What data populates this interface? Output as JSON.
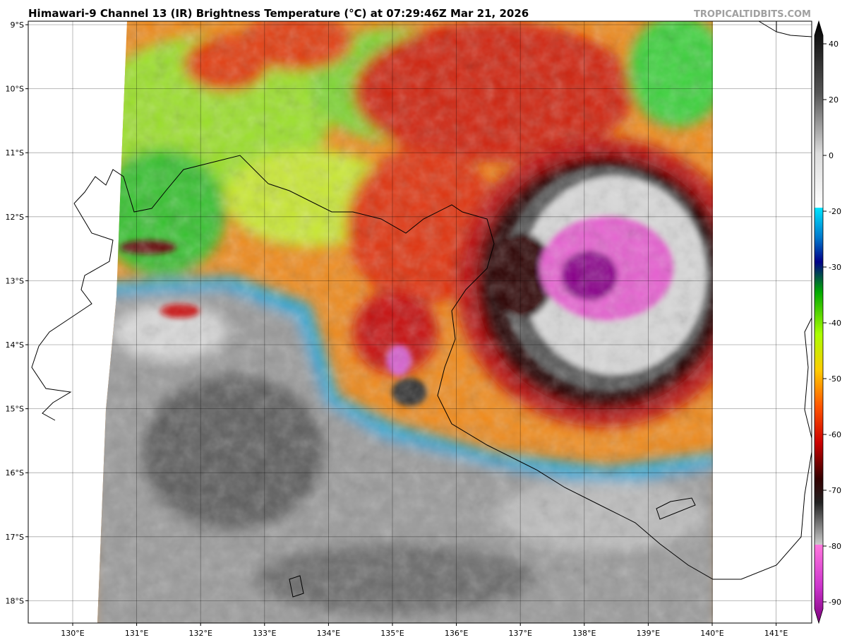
{
  "header": {
    "title": "Himawari-9 Channel 13 (IR) Brightness Temperature (°C) at 07:29:46Z Mar 21, 2026",
    "watermark": "TROPICALTIDBITS.COM"
  },
  "map": {
    "lat_labels": [
      "9°S",
      "10°S",
      "11°S",
      "12°S",
      "13°S",
      "14°S",
      "15°S",
      "16°S",
      "17°S",
      "18°S"
    ],
    "lon_labels": [
      "130°E",
      "131°E",
      "132°E",
      "133°E",
      "134°E",
      "135°E",
      "136°E",
      "137°E",
      "138°E",
      "139°E",
      "140°E",
      "141°E"
    ]
  },
  "colorbar": {
    "ticks": [
      40,
      20,
      0,
      -20,
      -30,
      -40,
      -50,
      -60,
      -70,
      -80,
      -90
    ]
  }
}
